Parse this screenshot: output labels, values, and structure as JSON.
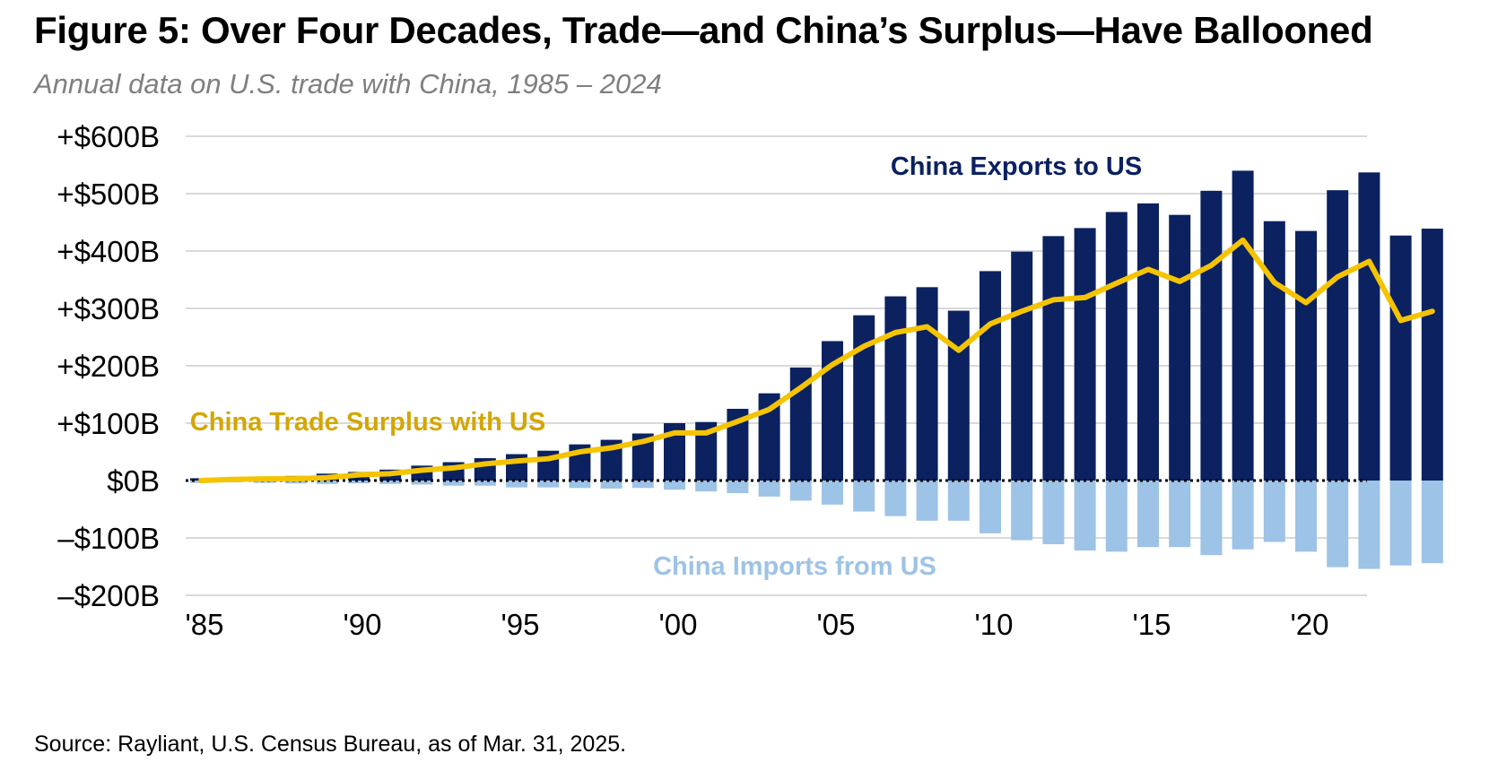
{
  "figure": {
    "title": "Figure 5: Over Four Decades, Trade—and China’s Surplus—Have Ballooned",
    "subtitle": "Annual data on U.S. trade with China, 1985 – 2024",
    "source": "Source: Rayliant, U.S. Census Bureau, as of Mar. 31, 2025."
  },
  "chart_data": {
    "type": "bar",
    "x": [
      1985,
      1986,
      1987,
      1988,
      1989,
      1990,
      1991,
      1992,
      1993,
      1994,
      1995,
      1996,
      1997,
      1998,
      1999,
      2000,
      2001,
      2002,
      2003,
      2004,
      2005,
      2006,
      2007,
      2008,
      2009,
      2010,
      2011,
      2012,
      2013,
      2014,
      2015,
      2016,
      2017,
      2018,
      2019,
      2020,
      2021,
      2022,
      2023,
      2024
    ],
    "series": [
      {
        "name": "China Exports to US",
        "kind": "bar",
        "color": "#0b2160",
        "values": [
          4,
          5,
          6,
          8,
          12,
          15,
          19,
          26,
          32,
          39,
          46,
          52,
          63,
          71,
          82,
          100,
          102,
          125,
          152,
          197,
          243,
          288,
          321,
          337,
          296,
          365,
          399,
          426,
          440,
          468,
          483,
          463,
          505,
          540,
          452,
          435,
          506,
          537,
          427,
          439
        ]
      },
      {
        "name": "China Imports from  US",
        "kind": "bar",
        "color": "#9dc3e6",
        "values": [
          -4,
          -3,
          -4,
          -5,
          -6,
          -5,
          -6,
          -7,
          -9,
          -9,
          -12,
          -12,
          -13,
          -14,
          -13,
          -16,
          -19,
          -22,
          -28,
          -35,
          -42,
          -54,
          -62,
          -70,
          -70,
          -92,
          -104,
          -111,
          -122,
          -124,
          -116,
          -116,
          -130,
          -120,
          -107,
          -124,
          -151,
          -154,
          -148,
          -144
        ]
      },
      {
        "name": "China Trade Surplus with US",
        "kind": "line",
        "color": "#f5c400",
        "label_color": "#d4a600",
        "values": [
          0,
          2,
          3,
          3,
          5,
          10,
          12,
          18,
          22,
          29,
          34,
          38,
          50,
          57,
          68,
          83,
          83,
          103,
          124,
          162,
          202,
          234,
          258,
          268,
          227,
          273,
          295,
          315,
          319,
          344,
          368,
          347,
          375,
          419,
          345,
          310,
          355,
          382,
          279,
          295
        ]
      }
    ],
    "x_ticks": [
      {
        "year": 1985,
        "label": "'85"
      },
      {
        "year": 1990,
        "label": "'90"
      },
      {
        "year": 1995,
        "label": "'95"
      },
      {
        "year": 2000,
        "label": "'00"
      },
      {
        "year": 2005,
        "label": "'05"
      },
      {
        "year": 2010,
        "label": "'10"
      },
      {
        "year": 2015,
        "label": "'15"
      },
      {
        "year": 2020,
        "label": "'20"
      }
    ],
    "y_ticks": [
      {
        "value": 600,
        "label": "+$600B"
      },
      {
        "value": 500,
        "label": "+$500B"
      },
      {
        "value": 400,
        "label": "+$400B"
      },
      {
        "value": 300,
        "label": "+$300B"
      },
      {
        "value": 200,
        "label": "+$200B"
      },
      {
        "value": 100,
        "label": "+$100B"
      },
      {
        "value": 0,
        "label": "$0B"
      },
      {
        "value": -100,
        "label": "–$100B"
      },
      {
        "value": -200,
        "label": "–$200B"
      }
    ],
    "ylim": [
      -200,
      600
    ],
    "grid": true,
    "zero_line": "dotted"
  }
}
